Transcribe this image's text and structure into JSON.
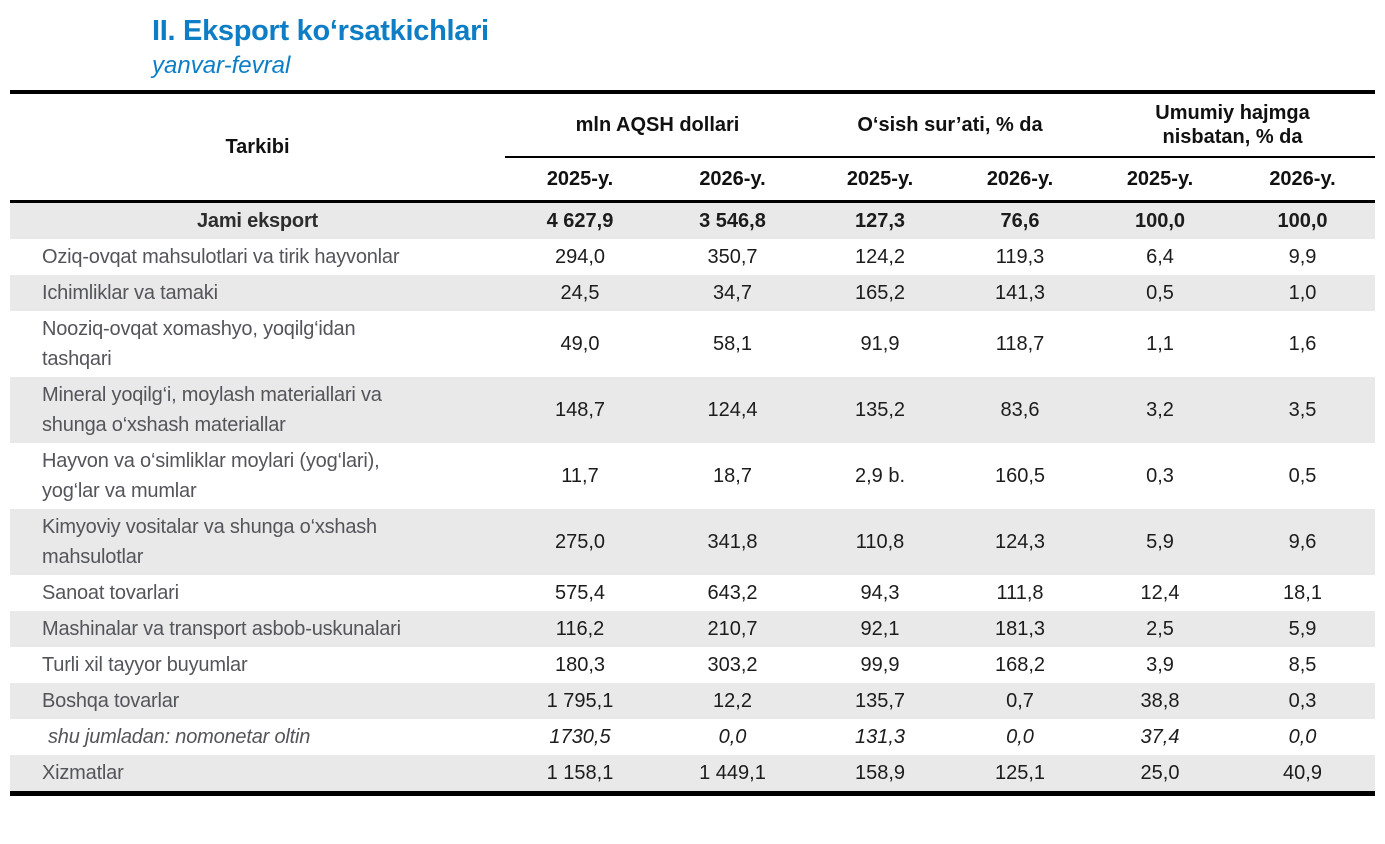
{
  "header": {
    "title": "II. Eksport ko‘rsatkichlari",
    "subtitle": "yanvar-fevral"
  },
  "colors": {
    "accent_blue": "#0d7ec6",
    "row_shade": "#e9e9e9",
    "label_gray": "#54555a"
  },
  "table": {
    "first_col_header": "Tarkibi",
    "groups": [
      {
        "label": "mln AQSH dollari"
      },
      {
        "label": "O‘sish sur’ati, % da"
      },
      {
        "label": "Umumiy hajmga nisbatan, % da"
      }
    ],
    "year_headers": [
      "2025-y.",
      "2026-y.",
      "2025-y.",
      "2026-y.",
      "2025-y.",
      "2026-y."
    ],
    "rows": [
      {
        "label": "Jami eksport",
        "style": "total",
        "values": [
          "4 627,9",
          "3 546,8",
          "127,3",
          "76,6",
          "100,0",
          "100,0"
        ]
      },
      {
        "label": "Oziq-ovqat mahsulotlari va tirik hayvonlar",
        "style": "normal",
        "values": [
          "294,0",
          "350,7",
          "124,2",
          "119,3",
          "6,4",
          "9,9"
        ]
      },
      {
        "label": "Ichimliklar va tamaki",
        "style": "normal",
        "values": [
          "24,5",
          "34,7",
          "165,2",
          "141,3",
          "0,5",
          "1,0"
        ]
      },
      {
        "label": "Nooziq-ovqat xomashyo, yoqilg‘idan tashqari",
        "style": "normal",
        "values": [
          "49,0",
          "58,1",
          "91,9",
          "118,7",
          "1,1",
          "1,6"
        ]
      },
      {
        "label": "Mineral yoqilg‘i, moylash materiallari va shunga o‘xshash materiallar",
        "style": "normal",
        "values": [
          "148,7",
          "124,4",
          "135,2",
          "83,6",
          "3,2",
          "3,5"
        ]
      },
      {
        "label": "Hayvon va o‘simliklar moylari (yog‘lari), yog‘lar va mumlar",
        "style": "normal",
        "values": [
          "11,7",
          "18,7",
          "2,9 b.",
          "160,5",
          "0,3",
          "0,5"
        ]
      },
      {
        "label": "Kimyoviy vositalar va shunga o‘xshash mahsulotlar",
        "style": "normal",
        "values": [
          "275,0",
          "341,8",
          "110,8",
          "124,3",
          "5,9",
          "9,6"
        ]
      },
      {
        "label": "Sanoat tovarlari",
        "style": "normal",
        "values": [
          "575,4",
          "643,2",
          "94,3",
          "111,8",
          "12,4",
          "18,1"
        ]
      },
      {
        "label": "Mashinalar va transport asbob-uskunalari",
        "style": "normal",
        "values": [
          "116,2",
          "210,7",
          "92,1",
          "181,3",
          "2,5",
          "5,9"
        ]
      },
      {
        "label": "Turli xil tayyor buyumlar",
        "style": "normal",
        "values": [
          "180,3",
          "303,2",
          "99,9",
          "168,2",
          "3,9",
          "8,5"
        ]
      },
      {
        "label": "Boshqa tovarlar",
        "style": "normal",
        "values": [
          "1 795,1",
          "12,2",
          "135,7",
          "0,7",
          "38,8",
          "0,3"
        ]
      },
      {
        "label": "shu jumladan: nomonetar oltin",
        "style": "sub",
        "values": [
          "1730,5",
          "0,0",
          "131,3",
          "0,0",
          "37,4",
          "0,0"
        ]
      },
      {
        "label": "Xizmatlar",
        "style": "normal",
        "values": [
          "1 158,1",
          "1 449,1",
          "158,9",
          "125,1",
          "25,0",
          "40,9"
        ]
      }
    ]
  }
}
